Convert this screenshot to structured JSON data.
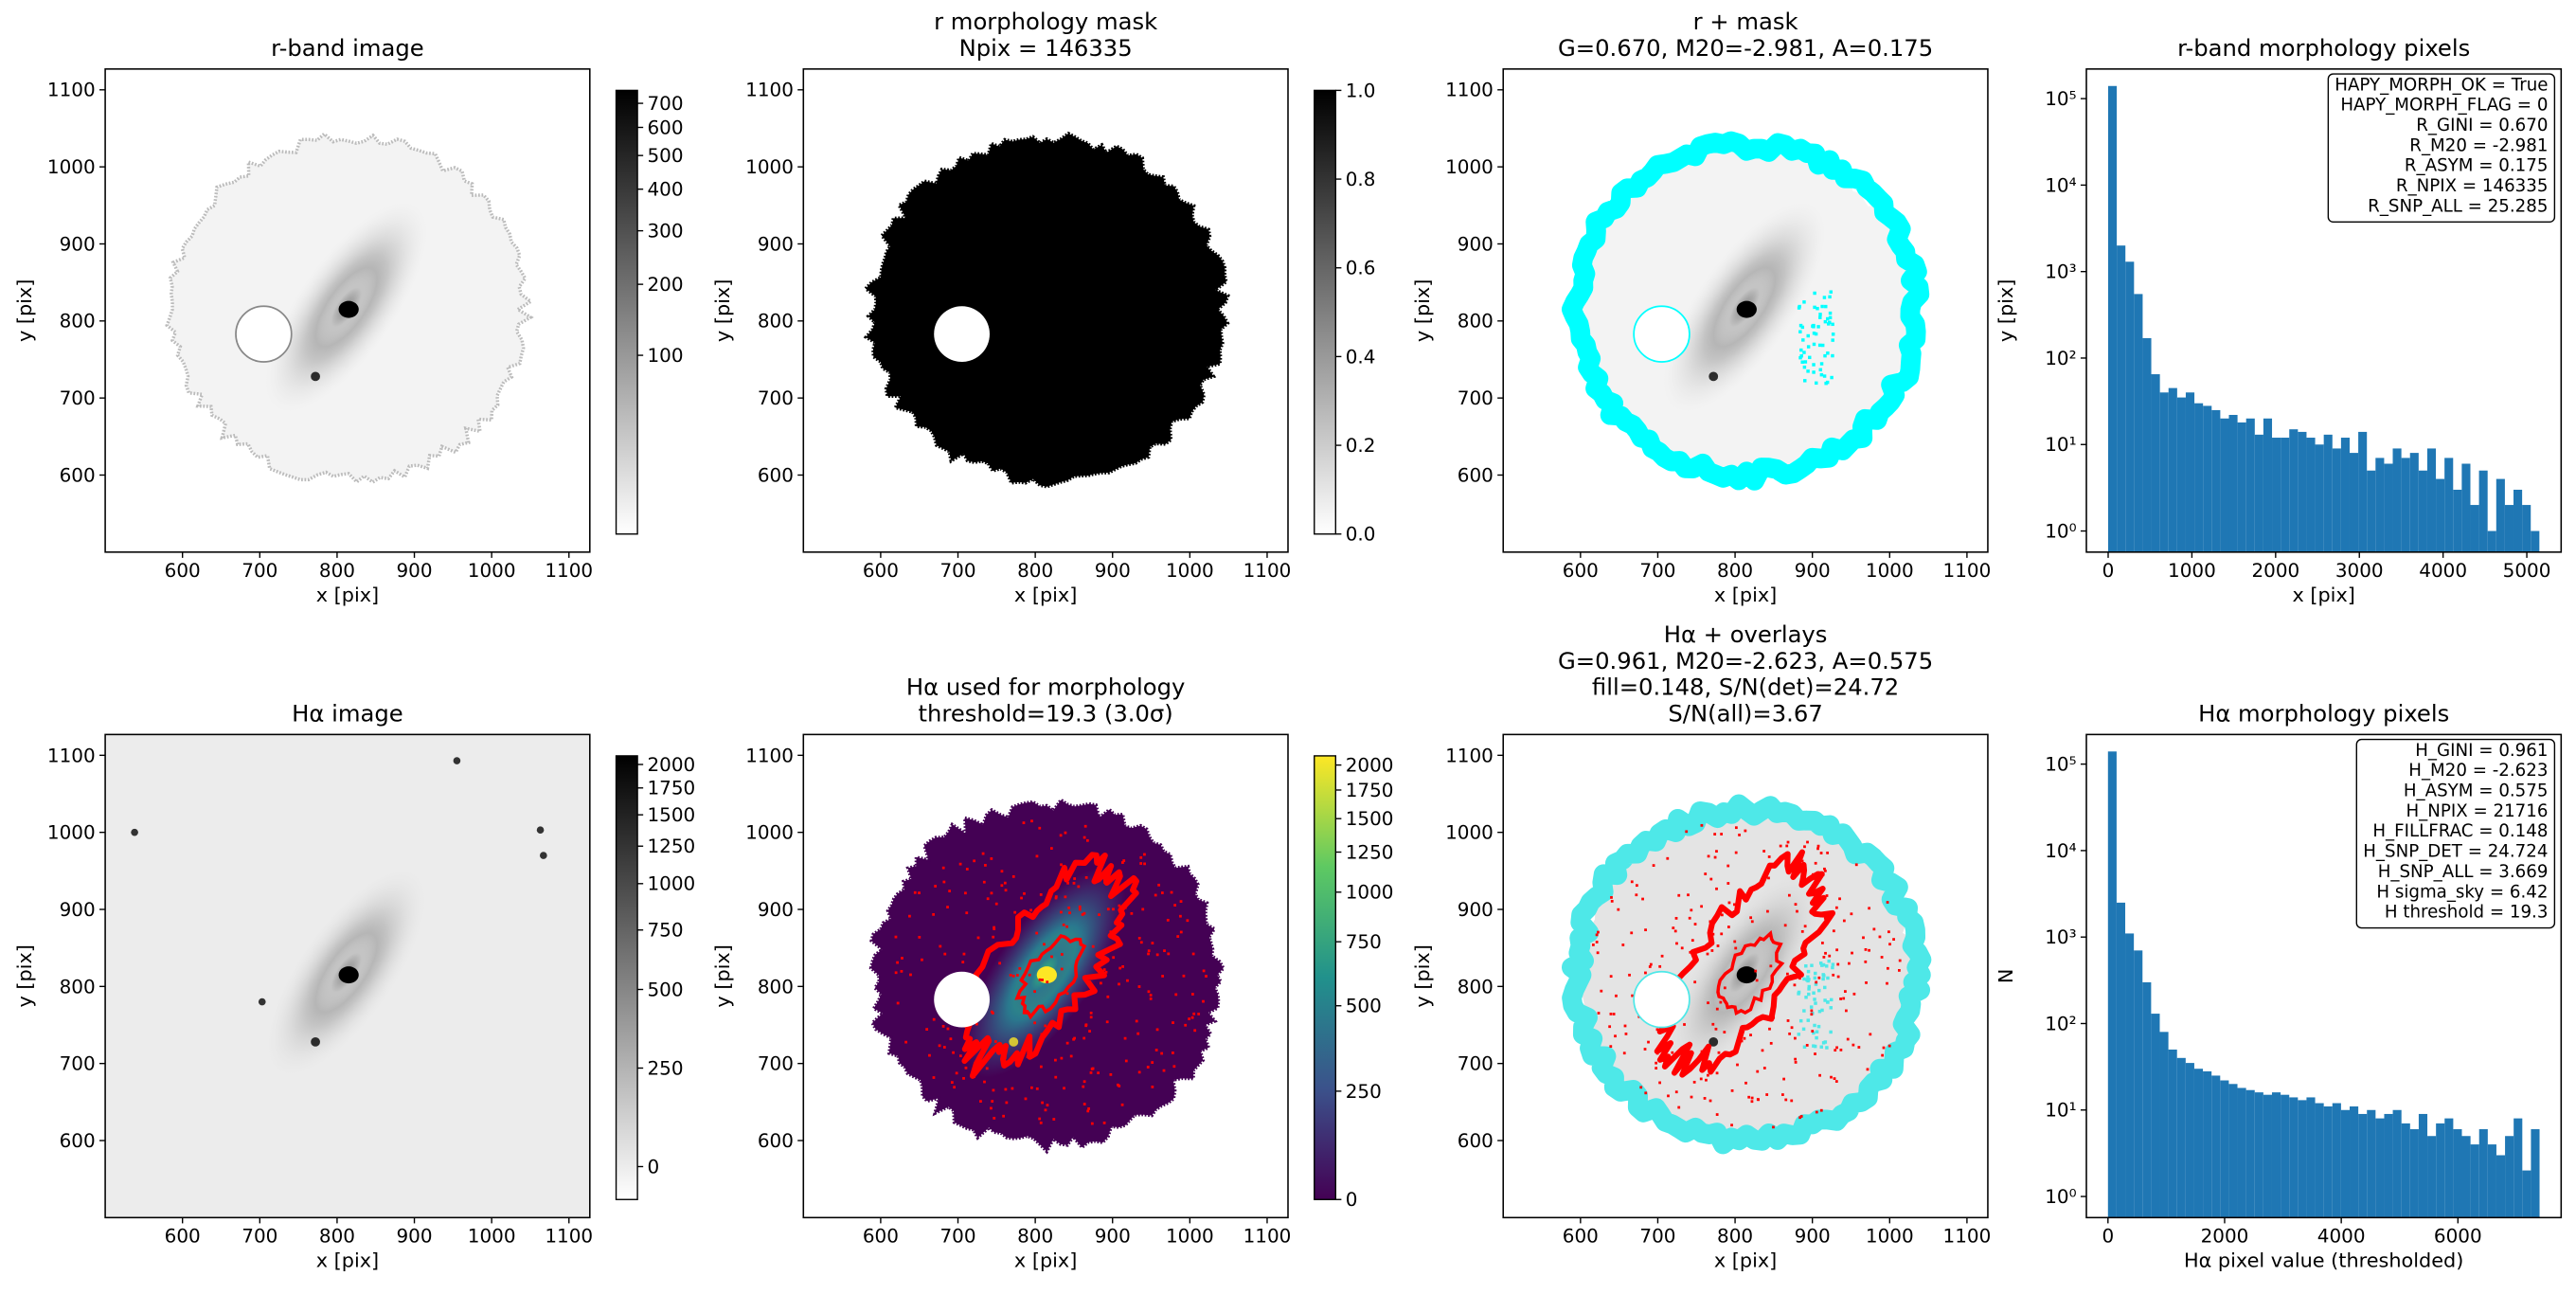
{
  "chart_data": [
    {
      "type": "image",
      "title": [
        "r-band image"
      ],
      "xlabel": "x [pix]",
      "ylabel": "y [pix]",
      "xlim": [
        500,
        1127
      ],
      "ylim": [
        500,
        1127
      ],
      "xticks": [
        600,
        700,
        800,
        900,
        1000,
        1100
      ],
      "yticks": [
        600,
        700,
        800,
        900,
        1000,
        1100
      ],
      "cmap": "gray_r",
      "colorbar": {
        "lim": [
          -100,
          760
        ],
        "stretch": "asinh",
        "ticks": [
          100,
          200,
          300,
          400,
          500,
          600,
          700
        ]
      }
    },
    {
      "type": "mask",
      "title": [
        "r morphology mask",
        "Npix = 146335"
      ],
      "xlabel": "x [pix]",
      "ylabel": "y [pix]",
      "xlim": [
        500,
        1127
      ],
      "ylim": [
        500,
        1127
      ],
      "xticks": [
        600,
        700,
        800,
        900,
        1000,
        1100
      ],
      "yticks": [
        600,
        700,
        800,
        900,
        1000,
        1100
      ],
      "cmap": "gray_r",
      "colorbar": {
        "lim": [
          0,
          1
        ],
        "stretch": "linear",
        "ticks": [
          {
            "value": 0,
            "label": "0.0"
          },
          0.2,
          0.4,
          0.6,
          0.8,
          {
            "value": 1,
            "label": "1.0"
          }
        ]
      }
    },
    {
      "type": "overlay",
      "title": [
        "r + mask",
        "G=0.670, M20=-2.981, A=0.175"
      ],
      "xlabel": "x [pix]",
      "ylabel": "y [pix]",
      "xlim": [
        500,
        1127
      ],
      "ylim": [
        500,
        1127
      ],
      "xticks": [
        600,
        700,
        800,
        900,
        1000,
        1100
      ],
      "yticks": [
        600,
        700,
        800,
        900,
        1000,
        1100
      ],
      "mask_color": "#00ffff"
    },
    {
      "type": "histogram",
      "title": [
        "r-band morphology pixels"
      ],
      "xlabel": "x [pix]",
      "ylabel": "y [pix]",
      "color": "#1f77b4",
      "bins": [
        0,
        103,
        206,
        309,
        412,
        515,
        618,
        721,
        824,
        927,
        1030,
        1133,
        1236,
        1339,
        1442,
        1545,
        1648,
        1751,
        1854,
        1957,
        2060,
        2163,
        2266,
        2369,
        2472,
        2575,
        2678,
        2781,
        2884,
        2987,
        3090,
        3193,
        3296,
        3399,
        3502,
        3605,
        3708,
        3811,
        3914,
        4017,
        4120,
        4223,
        4326,
        4429,
        4532,
        4635,
        4738,
        4841,
        4944,
        5047,
        5150
      ],
      "counts": [
        140000,
        2000,
        1300,
        550,
        170,
        65,
        40,
        45,
        35,
        40,
        30,
        28,
        25,
        20,
        22,
        18,
        20,
        13,
        20,
        12,
        12,
        15,
        14,
        12,
        10,
        13,
        9,
        12,
        8,
        14,
        5,
        7,
        6,
        9,
        7,
        8,
        5,
        9,
        4,
        7,
        3,
        6,
        2,
        5,
        1,
        4,
        2,
        3,
        2,
        1
      ],
      "xlim": [
        -260,
        5410
      ],
      "xticks": [
        0,
        1000,
        2000,
        3000,
        4000,
        5000
      ],
      "yscale": "log",
      "ylim": [
        0.57,
        220000
      ],
      "yticks": [
        {
          "value": 1,
          "label": "10⁰"
        },
        {
          "value": 10,
          "label": "10¹"
        },
        {
          "value": 100,
          "label": "10²"
        },
        {
          "value": 1000,
          "label": "10³"
        },
        {
          "value": 10000,
          "label": "10⁴"
        },
        {
          "value": 100000,
          "label": "10⁵"
        }
      ],
      "annotation": [
        "HAPY_MORPH_OK = True",
        "HAPY_MORPH_FLAG = 0",
        "R_GINI = 0.670",
        "R_M20 = -2.981",
        "R_ASYM = 0.175",
        "R_NPIX = 146335",
        "R_SNP_ALL = 25.285"
      ]
    },
    {
      "type": "image",
      "title": [
        "Hα image"
      ],
      "xlabel": "x [pix]",
      "ylabel": "y [pix]",
      "xlim": [
        500,
        1127
      ],
      "ylim": [
        500,
        1127
      ],
      "xticks": [
        600,
        700,
        800,
        900,
        1000,
        1100
      ],
      "yticks": [
        600,
        700,
        800,
        900,
        1000,
        1100
      ],
      "cmap": "gray_r",
      "colorbar": {
        "lim": [
          -80,
          2100
        ],
        "stretch": "asinh",
        "ticks": [
          0,
          250,
          500,
          750,
          1000,
          1250,
          1500,
          1750,
          2000
        ]
      }
    },
    {
      "type": "morph",
      "title": [
        "Hα used for morphology",
        "threshold=19.3 (3.0σ)"
      ],
      "xlabel": "x [pix]",
      "ylabel": "y [pix]",
      "xlim": [
        500,
        1127
      ],
      "ylim": [
        500,
        1127
      ],
      "xticks": [
        600,
        700,
        800,
        900,
        1000,
        1100
      ],
      "yticks": [
        600,
        700,
        800,
        900,
        1000,
        1100
      ],
      "cmap": "viridis",
      "contour_color": "#ff0000",
      "colorbar": {
        "lim": [
          0,
          2100
        ],
        "stretch": "asinh",
        "ticks": [
          0,
          250,
          500,
          750,
          1000,
          1250,
          1500,
          1750,
          2000
        ]
      }
    },
    {
      "type": "overlay",
      "title": [
        "Hα + overlays",
        "G=0.961, M20=-2.623, A=0.575",
        "fill=0.148, S/N(det)=24.72",
        "S/N(all)=3.67"
      ],
      "xlabel": "x [pix]",
      "ylabel": "y [pix]",
      "xlim": [
        500,
        1127
      ],
      "ylim": [
        500,
        1127
      ],
      "xticks": [
        600,
        700,
        800,
        900,
        1000,
        1100
      ],
      "yticks": [
        600,
        700,
        800,
        900,
        1000,
        1100
      ],
      "mask_color": "#4ee8e8",
      "contour_color": "#ff0000"
    },
    {
      "type": "histogram",
      "title": [
        "Hα morphology pixels"
      ],
      "xlabel": "Hα pixel value (thresholded)",
      "ylabel": "N",
      "color": "#1f77b4",
      "bins": [
        0,
        148,
        296,
        444,
        592,
        740,
        888,
        1036,
        1184,
        1332,
        1480,
        1628,
        1776,
        1924,
        2072,
        2220,
        2368,
        2516,
        2664,
        2812,
        2960,
        3108,
        3256,
        3404,
        3552,
        3700,
        3848,
        3996,
        4144,
        4292,
        4440,
        4588,
        4736,
        4884,
        5032,
        5180,
        5328,
        5476,
        5624,
        5772,
        5920,
        6068,
        6216,
        6364,
        6512,
        6660,
        6808,
        6956,
        7104,
        7252,
        7400
      ],
      "counts": [
        140000,
        2500,
        1100,
        700,
        300,
        130,
        80,
        50,
        40,
        35,
        30,
        28,
        25,
        22,
        20,
        18,
        17,
        16,
        15,
        16,
        15,
        14,
        13,
        14,
        12,
        11,
        12,
        10,
        11,
        9,
        10,
        8,
        9,
        10,
        7,
        6,
        9,
        5,
        7,
        8,
        6,
        5,
        4,
        6,
        4,
        3,
        5,
        8,
        2,
        6
      ],
      "xlim": [
        -370,
        7770
      ],
      "xticks": [
        0,
        2000,
        4000,
        6000
      ],
      "yscale": "log",
      "ylim": [
        0.57,
        220000
      ],
      "yticks": [
        {
          "value": 1,
          "label": "10⁰"
        },
        {
          "value": 10,
          "label": "10¹"
        },
        {
          "value": 100,
          "label": "10²"
        },
        {
          "value": 1000,
          "label": "10³"
        },
        {
          "value": 10000,
          "label": "10⁴"
        },
        {
          "value": 100000,
          "label": "10⁵"
        }
      ],
      "annotation": [
        "H_GINI = 0.961",
        "H_M20 = -2.623",
        "H_ASYM = 0.575",
        "H_NPIX = 21716",
        "H_FILLFRAC = 0.148",
        "H_SNP_DET = 24.724",
        "H_SNP_ALL = 3.669",
        "H sigma_sky = 6.42",
        "H threshold = 19.3"
      ]
    }
  ]
}
